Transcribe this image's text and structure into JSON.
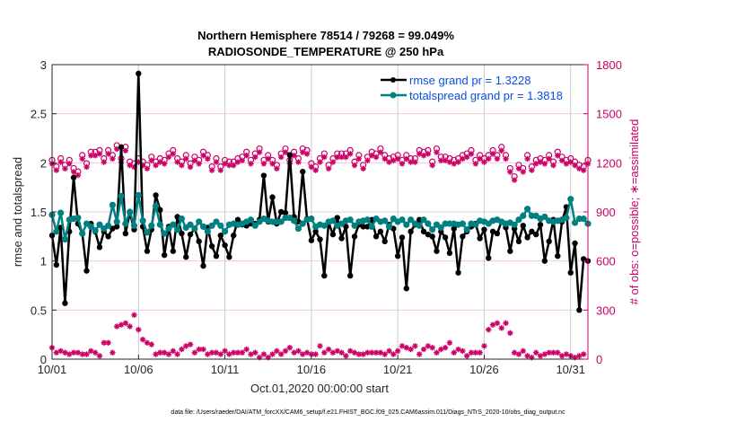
{
  "chart_data": {
    "type": "line",
    "title": [
      "Northern Hemisphere 78514 / 79268 = 99.049%",
      "RADIOSONDE_TEMPERATURE @ 250 hPa"
    ],
    "xlabel": "Oct.01,2020 00:00:00 start",
    "ylabel": "rmse and totalspread",
    "y2label": "# of obs: o=possible; ∗=assimilated",
    "footnote": "data file: /Users/raeder/DAI/ATM_forcXX/CAM6_setup/f.e21.FHIST_BGC.f09_025.CAM6assim.011/Diags_NTrS_2020-10/obs_diag_output.nc",
    "xlim": [
      1,
      32
    ],
    "ylim": [
      0,
      3
    ],
    "y2lim": [
      0,
      1800
    ],
    "x_ticks": [
      1,
      6,
      11,
      16,
      21,
      26,
      31
    ],
    "x_tick_labels": [
      "10/01",
      "10/06",
      "10/11",
      "10/16",
      "10/21",
      "10/26",
      "10/31"
    ],
    "y_ticks": [
      0,
      0.5,
      1,
      1.5,
      2,
      2.5,
      3
    ],
    "y_tick_labels": [
      "0",
      "0.5",
      "1",
      "1.5",
      "2",
      "2.5",
      "3"
    ],
    "y2_ticks": [
      0,
      300,
      600,
      900,
      1200,
      1500,
      1800
    ],
    "y2_tick_labels": [
      "0",
      "300",
      "600",
      "900",
      "1200",
      "1500",
      "1800"
    ],
    "grid": true,
    "legend_position": "top-right",
    "colors": {
      "rmse": "#000000",
      "spread": "#008080",
      "obs": "#cc0066",
      "legend_text": "#0b4fe0",
      "grid": "#f2c8d8",
      "vgrid": "#cccccc"
    },
    "series": [
      {
        "name": "rmse grand pr = 1.3228",
        "axis": "left",
        "x_start": 1.0,
        "x_step": 0.25,
        "values": [
          1.26,
          0.96,
          1.34,
          0.57,
          1.3,
          1.85,
          1.38,
          1.28,
          0.9,
          1.38,
          1.3,
          1.14,
          1.3,
          1.25,
          1.33,
          1.35,
          2.16,
          1.28,
          1.49,
          1.32,
          2.91,
          1.35,
          1.1,
          1.32,
          1.67,
          1.52,
          1.06,
          1.35,
          1.1,
          1.45,
          1.28,
          1.04,
          1.27,
          1.33,
          1.2,
          0.95,
          1.34,
          1.15,
          1.05,
          1.26,
          1.16,
          1.04,
          1.26,
          1.42,
          1.37,
          1.36,
          1.38,
          1.38,
          1.42,
          1.87,
          1.4,
          1.65,
          1.38,
          1.5,
          1.49,
          2.08,
          1.45,
          1.4,
          1.91,
          1.43,
          1.21,
          1.3,
          1.22,
          0.85,
          1.39,
          1.27,
          1.44,
          1.23,
          1.35,
          0.85,
          1.25,
          1.37,
          1.35,
          1.35,
          1.42,
          1.25,
          1.3,
          1.2,
          1.37,
          1.33,
          1.05,
          1.24,
          0.72,
          1.3,
          1.37,
          1.42,
          1.3,
          1.27,
          1.25,
          1.1,
          1.3,
          1.24,
          1.08,
          1.33,
          0.88,
          1.25,
          1.3,
          1.35,
          1.38,
          1.23,
          1.32,
          1.03,
          1.3,
          1.28,
          1.4,
          1.34,
          1.1,
          1.33,
          1.2,
          1.36,
          1.24,
          1.3,
          1.27,
          1.37,
          1.0,
          1.2,
          1.42,
          1.05,
          1.4,
          1.55,
          0.88,
          1.18,
          0.5,
          1.02,
          1.0
        ]
      },
      {
        "name": "totalspread grand pr = 1.3818",
        "axis": "left",
        "x_start": 1.0,
        "x_step": 0.25,
        "values": [
          1.47,
          1.3,
          1.49,
          1.22,
          1.42,
          1.43,
          1.44,
          1.28,
          1.38,
          1.35,
          1.31,
          1.37,
          1.33,
          1.36,
          1.57,
          1.4,
          1.66,
          1.38,
          1.5,
          1.36,
          1.67,
          1.41,
          1.29,
          1.36,
          1.56,
          1.37,
          1.28,
          1.33,
          1.37,
          1.32,
          1.43,
          1.34,
          1.37,
          1.33,
          1.4,
          1.35,
          1.3,
          1.36,
          1.4,
          1.36,
          1.3,
          1.37,
          1.38,
          1.37,
          1.38,
          1.4,
          1.42,
          1.36,
          1.4,
          1.43,
          1.41,
          1.4,
          1.4,
          1.4,
          1.44,
          1.44,
          1.41,
          1.33,
          1.38,
          1.42,
          1.43,
          1.35,
          1.37,
          1.36,
          1.4,
          1.41,
          1.36,
          1.38,
          1.41,
          1.42,
          1.36,
          1.4,
          1.41,
          1.42,
          1.35,
          1.43,
          1.4,
          1.41,
          1.35,
          1.43,
          1.4,
          1.42,
          1.37,
          1.42,
          1.38,
          1.36,
          1.42,
          1.38,
          1.32,
          1.37,
          1.34,
          1.38,
          1.38,
          1.38,
          1.37,
          1.38,
          1.32,
          1.38,
          1.37,
          1.41,
          1.4,
          1.38,
          1.41,
          1.42,
          1.4,
          1.38,
          1.39,
          1.37,
          1.42,
          1.46,
          1.53,
          1.46,
          1.46,
          1.43,
          1.45,
          1.41,
          1.4,
          1.41,
          1.42,
          1.44,
          1.63,
          1.39,
          1.43,
          1.43,
          1.38,
          1.36,
          1.35,
          1.37,
          1.28,
          1.36,
          1.32,
          1.34,
          1.33
        ]
      },
      {
        "name": "obs possible",
        "axis": "right",
        "marker": "circle",
        "x_start": 1.0,
        "x_step": 0.25,
        "values": [
          1200,
          1160,
          1210,
          1170,
          1200,
          1150,
          1130,
          1230,
          1180,
          1250,
          1250,
          1260,
          1210,
          1260,
          1230,
          1290,
          1210,
          1280,
          1190,
          1180,
          1210,
          1190,
          1170,
          1220,
          1190,
          1210,
          1200,
          1240,
          1260,
          1210,
          1190,
          1230,
          1180,
          1220,
          1200,
          1250,
          1230,
          1160,
          1210,
          1160,
          1200,
          1190,
          1190,
          1210,
          1220,
          1250,
          1200,
          1240,
          1270,
          1200,
          1230,
          1200,
          1170,
          1240,
          1270,
          1200,
          1250,
          1210,
          1270,
          1260,
          1180,
          1160,
          1210,
          1240,
          1170,
          1210,
          1240,
          1240,
          1240,
          1260,
          1190,
          1230,
          1170,
          1220,
          1250,
          1240,
          1270,
          1230,
          1210,
          1220,
          1230,
          1200,
          1230,
          1210,
          1210,
          1260,
          1250,
          1260,
          1190,
          1270,
          1220,
          1220,
          1210,
          1200,
          1210,
          1230,
          1240,
          1260,
          1200,
          1230,
          1210,
          1230,
          1260,
          1230,
          1280,
          1230,
          1150,
          1100,
          1170,
          1150,
          1230,
          1160,
          1200,
          1210,
          1200,
          1230,
          1190,
          1250,
          1220,
          1200,
          1210,
          1190,
          1170,
          1160,
          1200,
          1160
        ]
      },
      {
        "name": "obs assimilated",
        "axis": "right",
        "marker": "asterisk",
        "x_start": 1.0,
        "x_step": 0.25,
        "values": [
          70,
          40,
          50,
          40,
          30,
          40,
          40,
          30,
          30,
          50,
          40,
          20,
          100,
          100,
          40,
          200,
          210,
          220,
          200,
          270,
          180,
          120,
          100,
          90,
          30,
          40,
          40,
          30,
          50,
          30,
          60,
          80,
          90,
          40,
          60,
          60,
          30,
          40,
          40,
          30,
          50,
          30,
          40,
          40,
          40,
          60,
          30,
          40,
          10,
          30,
          10,
          30,
          50,
          30,
          50,
          70,
          40,
          50,
          30,
          40,
          30,
          30,
          80,
          40,
          60,
          40,
          50,
          40,
          20,
          50,
          40,
          30,
          30,
          40,
          40,
          40,
          40,
          30,
          50,
          30,
          50,
          80,
          70,
          60,
          80,
          30,
          60,
          80,
          70,
          40,
          60,
          70,
          100,
          40,
          60,
          50,
          20,
          40,
          40,
          40,
          80,
          180,
          210,
          220,
          190,
          220,
          160,
          40,
          30,
          50,
          20,
          10,
          40,
          20,
          30,
          40,
          40,
          40,
          20,
          30,
          20,
          10,
          20,
          30
        ]
      }
    ]
  }
}
